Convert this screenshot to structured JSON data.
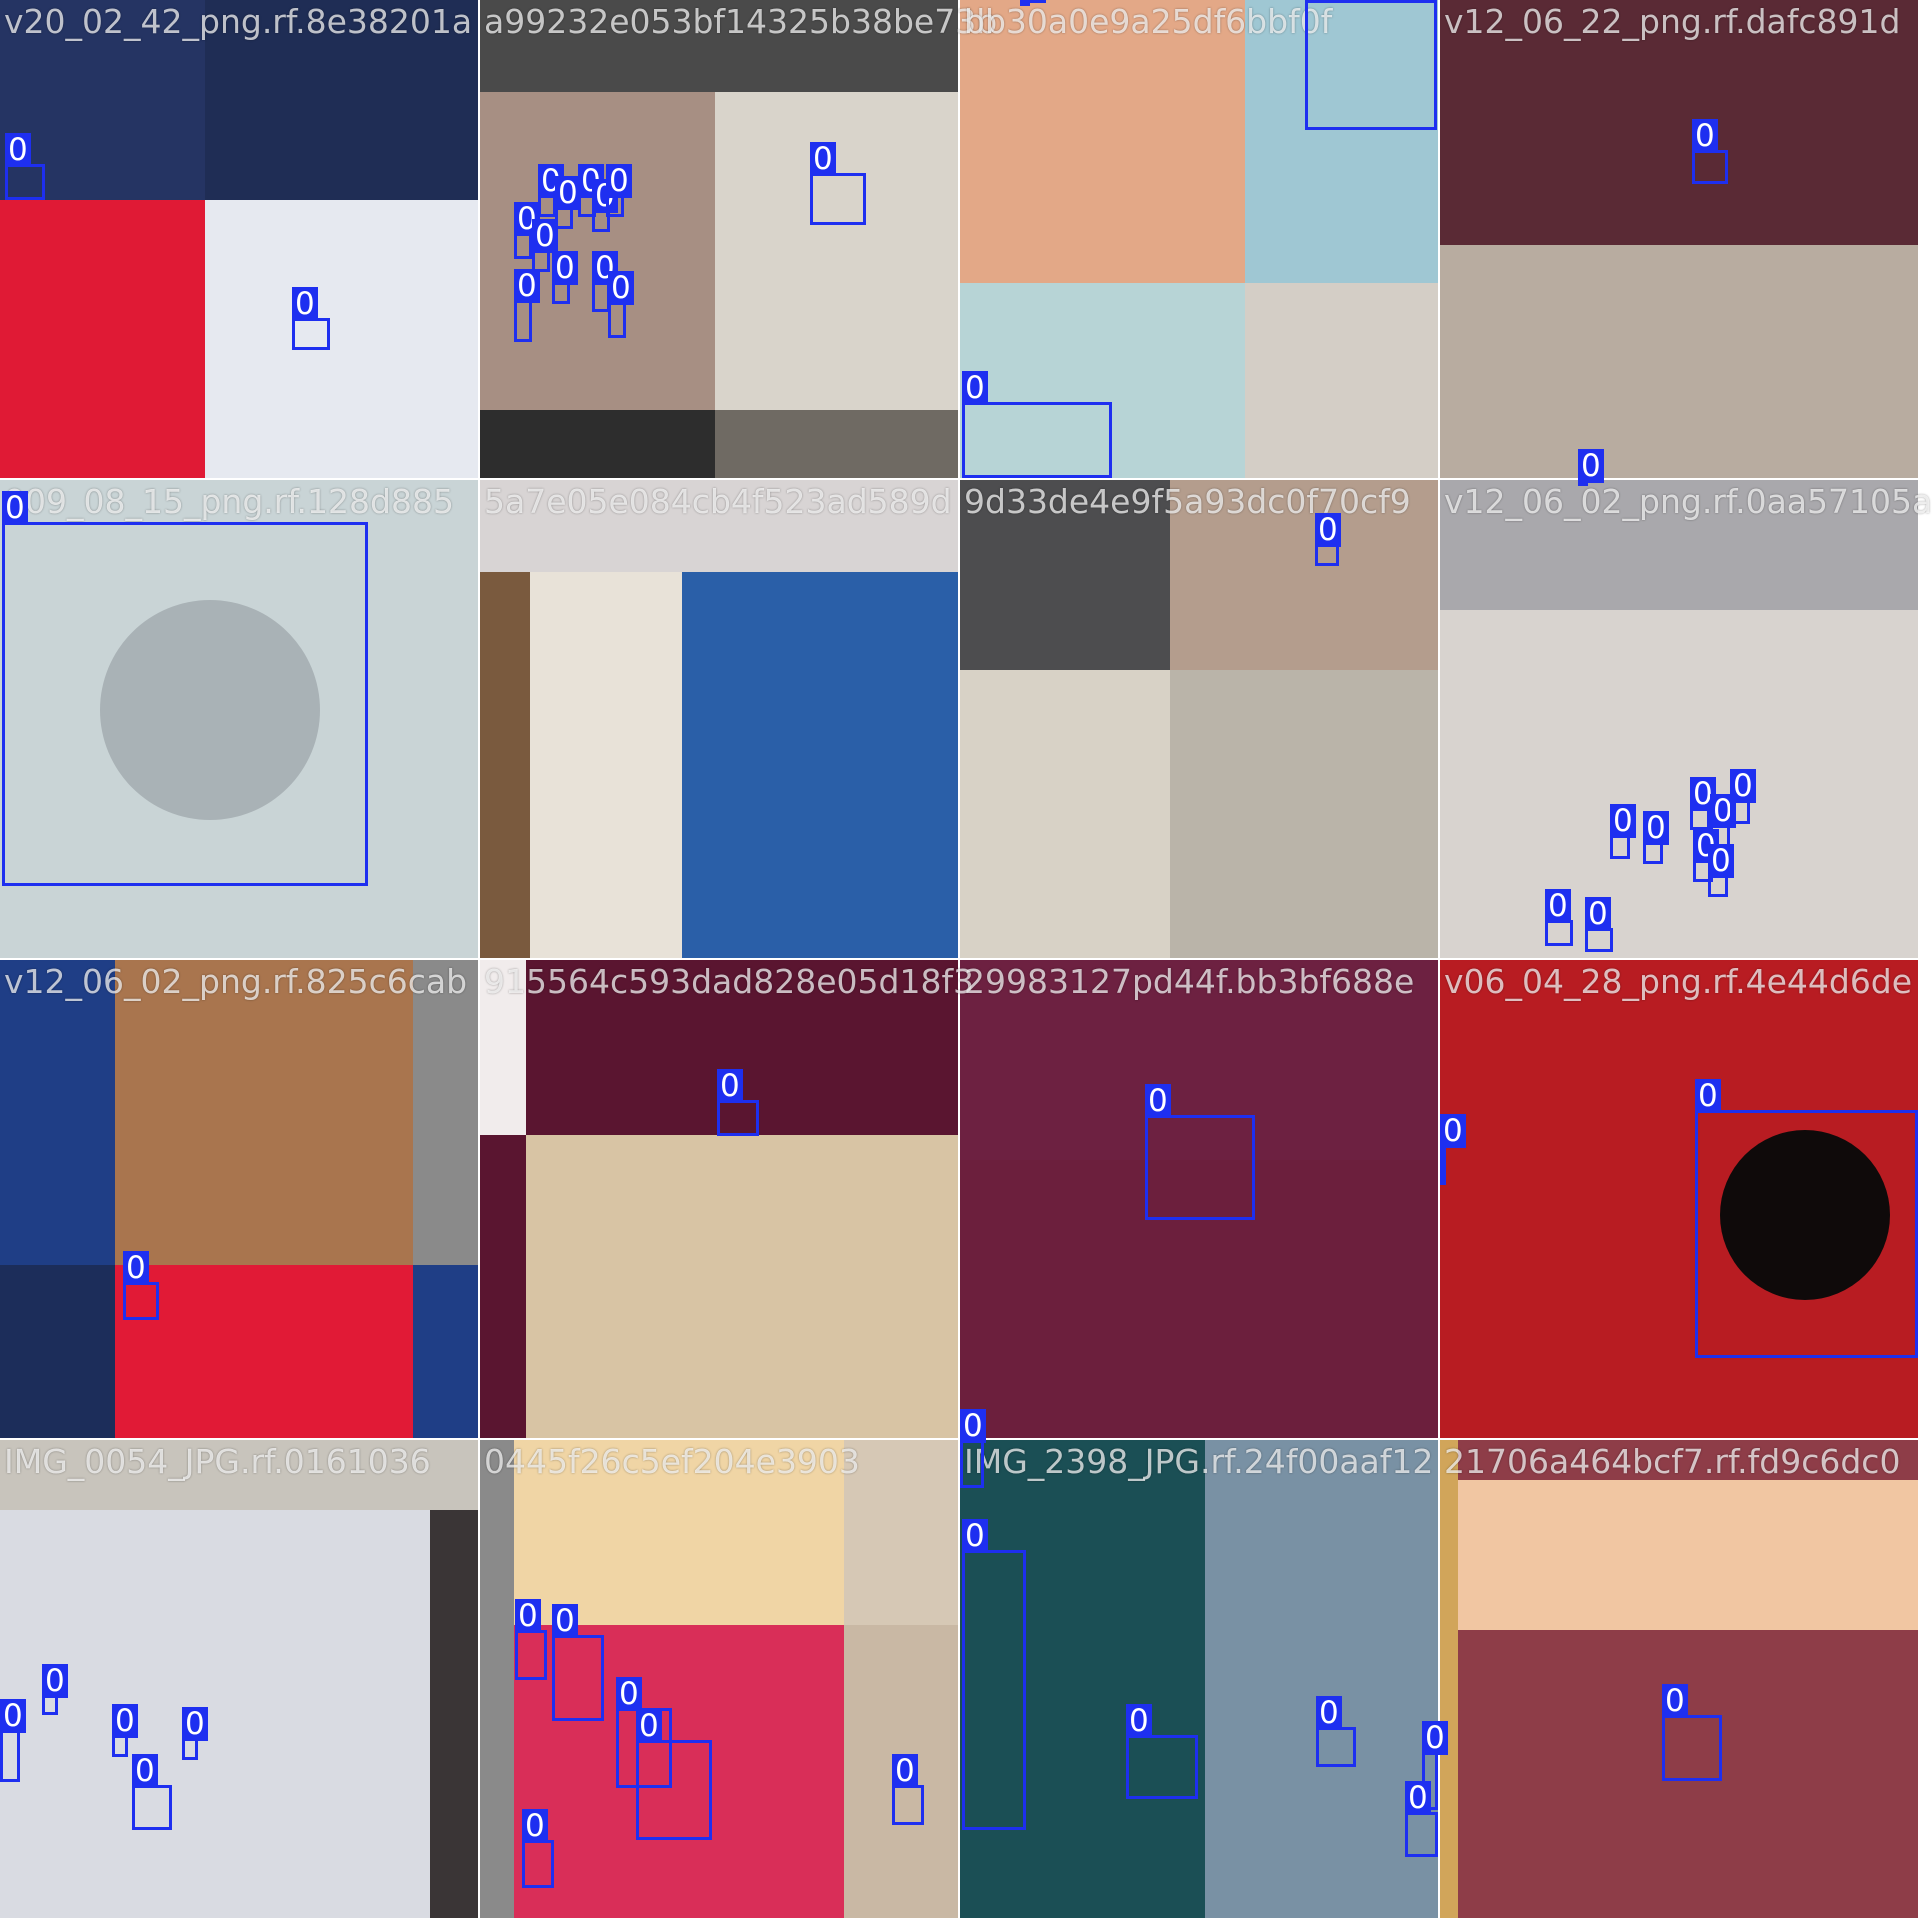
{
  "image": {
    "type": "object-detection mosaic",
    "grid": "4x4",
    "box_color": "#1e2ff0",
    "tiles": [
      {
        "label": "v20_02_42_png.rf.8e38201a",
        "boxes": [
          "0",
          "0"
        ]
      },
      {
        "label": "a99232e053bf14325b38be73b",
        "boxes": [
          "0",
          "0",
          "0",
          "0",
          "0",
          "0",
          "0",
          "0",
          "0",
          "0",
          "0",
          "0"
        ]
      },
      {
        "label": "bb30a0e9a25df6bbf0f",
        "boxes": [
          "0",
          "0",
          "0"
        ]
      },
      {
        "label": "v12_06_22_png.rf.dafc891d",
        "boxes": [
          "0"
        ]
      },
      {
        "label": "009_08_15_png.rf.128d885",
        "boxes": [
          "0"
        ]
      },
      {
        "label": "5a7e05e084cb4f523ad589d",
        "boxes": []
      },
      {
        "label": "9d33de4e9f5a93dc0f70cf9",
        "boxes": [
          "0"
        ]
      },
      {
        "label": "v12_06_02_png.rf.0aa57105a",
        "boxes": [
          "0",
          "0",
          "0",
          "0",
          "0",
          "0",
          "0",
          "0",
          "0",
          "0"
        ]
      },
      {
        "label": "v12_06_02_png.rf.825c6cab",
        "boxes": [
          "0"
        ]
      },
      {
        "label": "915564c593dad828e05d18f3",
        "boxes": [
          "0"
        ]
      },
      {
        "label": "29983127pd44f.bb3bf688e",
        "boxes": [
          "0"
        ]
      },
      {
        "label": "v06_04_28_png.rf.4e44d6de",
        "boxes": [
          "0",
          "0"
        ]
      },
      {
        "label": "IMG_0054_JPG.rf.0161036",
        "boxes": [
          "0",
          "0",
          "0",
          "0",
          "0"
        ]
      },
      {
        "label": "0445f26c5ef204e3903",
        "boxes": [
          "0",
          "0",
          "0",
          "0",
          "0",
          "0"
        ]
      },
      {
        "label": "IMG_2398_JPG.rf.24f00aaf12",
        "boxes": [
          "0",
          "0",
          "0",
          "0",
          "0",
          "0"
        ]
      },
      {
        "label": "21706a464bcf7.rf.fd9c6dc0",
        "boxes": [
          "0"
        ]
      }
    ]
  }
}
